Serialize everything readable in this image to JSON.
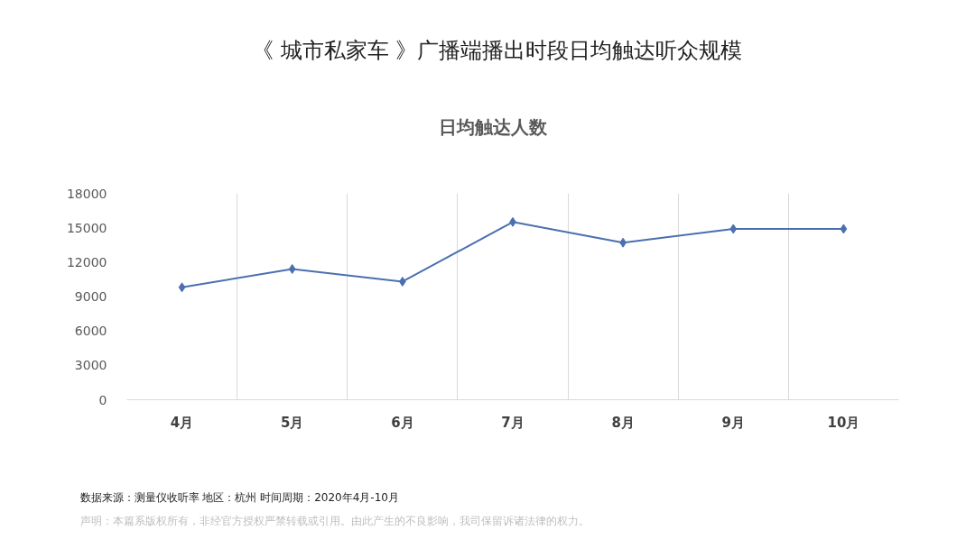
{
  "chart_data": {
    "type": "line",
    "title": "《 城市私家车 》广播端播出时段日均触达听众规模",
    "subtitle": "日均触达人数",
    "categories": [
      "4月",
      "5月",
      "6月",
      "7月",
      "8月",
      "9月",
      "10月"
    ],
    "series": [
      {
        "color": "#4a70b0",
        "values": [
          9800,
          11400,
          10300,
          15500,
          13700,
          14900,
          14900
        ]
      }
    ],
    "ylim": [
      0,
      18000
    ],
    "yticks": [
      0,
      3000,
      6000,
      9000,
      12000,
      15000,
      18000
    ],
    "grid": "x",
    "marker": "diamond",
    "annotations": [
      "数据来源：测量仪收听率  地区：杭州  时间周期：2020年4月-10月",
      "声明：本篇系版权所有，非经官方授权严禁转载或引用。由此产生的不良影响，我司保留诉诸法律的权力。"
    ]
  }
}
